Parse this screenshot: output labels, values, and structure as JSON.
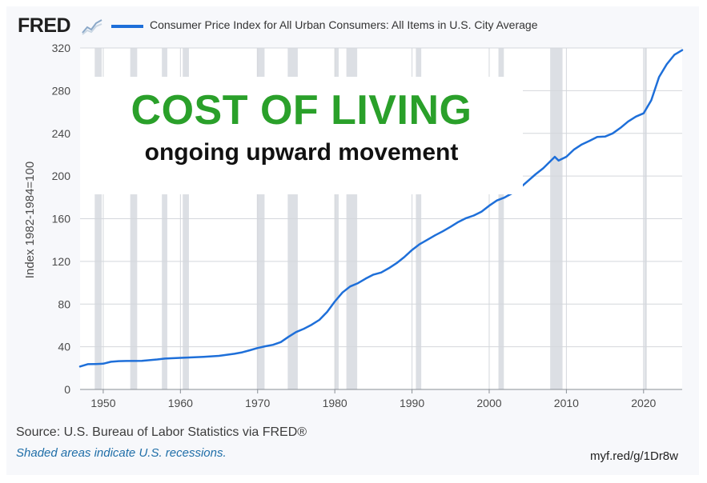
{
  "header": {
    "logo_text": "FRED",
    "logo_icon": "line-chart-icon",
    "series_label": "Consumer Price Index for All Urban Consumers: All Items in U.S. City Average",
    "series_color": "#1e6fd9"
  },
  "overlay": {
    "title": "COST OF LIVING",
    "subtitle": "ongoing upward movement",
    "title_color": "#2aa02a"
  },
  "footer": {
    "source": "U.S. Bureau of Labor Statistics via FRED®",
    "recession_note": "Shaded areas indicate U.S. recessions.",
    "short_url": "myf.red/g/1Dr8w"
  },
  "chart_data": {
    "type": "line",
    "ylabel": "Index 1982-1984=100",
    "xlabel": "",
    "xlim": [
      1947,
      2025
    ],
    "ylim": [
      0,
      320
    ],
    "x_ticks": [
      1950,
      1960,
      1970,
      1980,
      1990,
      2000,
      2010,
      2020
    ],
    "y_ticks": [
      0,
      40,
      80,
      120,
      160,
      200,
      240,
      280,
      320
    ],
    "grid": true,
    "recessions": [
      [
        1948.9,
        1949.8
      ],
      [
        1953.5,
        1954.4
      ],
      [
        1957.6,
        1958.3
      ],
      [
        1960.3,
        1961.1
      ],
      [
        1969.9,
        1970.9
      ],
      [
        1973.9,
        1975.2
      ],
      [
        1980.0,
        1980.5
      ],
      [
        1981.5,
        1982.9
      ],
      [
        1990.5,
        1991.2
      ],
      [
        2001.2,
        2001.9
      ],
      [
        2007.9,
        2009.5
      ],
      [
        2020.1,
        2020.4
      ]
    ],
    "series": [
      {
        "color": "#1e6fd9",
        "x": [
          1947,
          1948,
          1949,
          1950,
          1951,
          1952,
          1953,
          1955,
          1957,
          1958,
          1960,
          1963,
          1965,
          1967,
          1968,
          1969,
          1970,
          1971,
          1972,
          1973,
          1974,
          1975,
          1976,
          1977,
          1978,
          1979,
          1980,
          1981,
          1982,
          1983,
          1984,
          1985,
          1986,
          1987,
          1988,
          1989,
          1990,
          1991,
          1992,
          1993,
          1994,
          1995,
          1996,
          1997,
          1998,
          1999,
          2000,
          2001,
          2002,
          2003,
          2004,
          2005,
          2006,
          2007,
          2008.5,
          2009,
          2010,
          2011,
          2012,
          2013,
          2014,
          2015,
          2016,
          2017,
          2018,
          2019,
          2020,
          2021,
          2022,
          2023,
          2024,
          2025
        ],
        "values": [
          21.5,
          23.7,
          23.8,
          24.1,
          25.9,
          26.5,
          26.7,
          26.8,
          28.1,
          28.9,
          29.6,
          30.6,
          31.5,
          33.4,
          34.8,
          36.7,
          38.8,
          40.5,
          41.8,
          44.4,
          49.3,
          53.8,
          56.9,
          60.6,
          65.2,
          72.6,
          82.4,
          90.9,
          96.5,
          99.6,
          103.9,
          107.6,
          109.6,
          113.6,
          118.3,
          124.0,
          130.7,
          136.2,
          140.3,
          144.5,
          148.2,
          152.4,
          156.9,
          160.5,
          163.0,
          166.6,
          172.2,
          177.1,
          179.9,
          184.0,
          188.9,
          195.3,
          201.6,
          207.3,
          218.0,
          214.5,
          218.1,
          224.9,
          229.6,
          233.0,
          236.7,
          237.0,
          240.0,
          245.1,
          251.1,
          255.7,
          258.8,
          271.0,
          292.7,
          304.7,
          313.7,
          318.0
        ]
      }
    ]
  }
}
